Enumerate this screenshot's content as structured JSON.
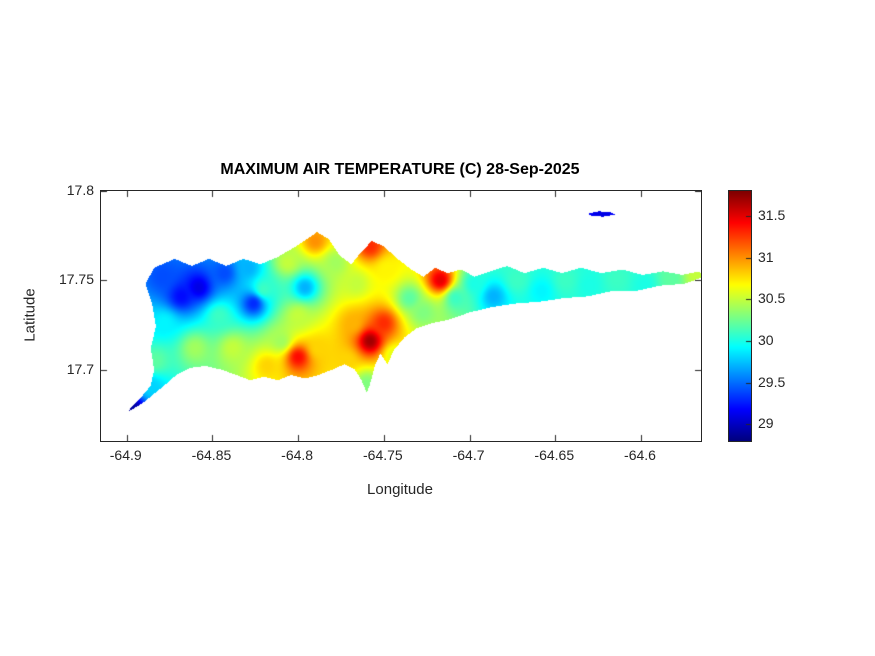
{
  "figure": {
    "title": "MAXIMUM AIR TEMPERATURE (C) 28-Sep-2025",
    "xlabel": "Longitude",
    "ylabel": "Latitude"
  },
  "chart_data": {
    "type": "heatmap",
    "title": "MAXIMUM AIR TEMPERATURE (C) 28-Sep-2025",
    "subtitle_date": "28-Sep-2025",
    "units": "C",
    "xlabel": "Longitude",
    "ylabel": "Latitude",
    "xlim": [
      -64.915,
      -64.565
    ],
    "ylim": [
      17.66,
      17.8
    ],
    "x_ticks": [
      -64.9,
      -64.85,
      -64.8,
      -64.75,
      -64.7,
      -64.65,
      -64.6
    ],
    "y_ticks": [
      17.8,
      17.75,
      17.7
    ],
    "grid": false,
    "colorbar": {
      "position": "right",
      "colormap": "jet",
      "min": 28.8,
      "max": 31.8,
      "ticks": [
        29,
        29.5,
        30,
        30.5,
        31,
        31.5
      ]
    },
    "islands": [
      {
        "name": "st-croix-main",
        "outline": [
          [
            -64.889,
            17.748
          ],
          [
            -64.884,
            17.757
          ],
          [
            -64.872,
            17.762
          ],
          [
            -64.862,
            17.758
          ],
          [
            -64.852,
            17.762
          ],
          [
            -64.842,
            17.758
          ],
          [
            -64.832,
            17.762
          ],
          [
            -64.822,
            17.759
          ],
          [
            -64.812,
            17.763
          ],
          [
            -64.803,
            17.768
          ],
          [
            -64.795,
            17.773
          ],
          [
            -64.789,
            17.777
          ],
          [
            -64.782,
            17.773
          ],
          [
            -64.776,
            17.764
          ],
          [
            -64.769,
            17.759
          ],
          [
            -64.763,
            17.766
          ],
          [
            -64.757,
            17.772
          ],
          [
            -64.75,
            17.769
          ],
          [
            -64.742,
            17.762
          ],
          [
            -64.734,
            17.756
          ],
          [
            -64.727,
            17.752
          ],
          [
            -64.72,
            17.757
          ],
          [
            -64.713,
            17.754
          ],
          [
            -64.705,
            17.756
          ],
          [
            -64.697,
            17.752
          ],
          [
            -64.688,
            17.755
          ],
          [
            -64.678,
            17.758
          ],
          [
            -64.668,
            17.754
          ],
          [
            -64.657,
            17.757
          ],
          [
            -64.646,
            17.754
          ],
          [
            -64.635,
            17.757
          ],
          [
            -64.623,
            17.754
          ],
          [
            -64.611,
            17.756
          ],
          [
            -64.599,
            17.753
          ],
          [
            -64.587,
            17.755
          ],
          [
            -64.576,
            17.753
          ],
          [
            -64.566,
            17.755
          ],
          [
            -64.563,
            17.752
          ],
          [
            -64.575,
            17.748
          ],
          [
            -64.589,
            17.747
          ],
          [
            -64.603,
            17.744
          ],
          [
            -64.617,
            17.744
          ],
          [
            -64.631,
            17.741
          ],
          [
            -64.645,
            17.74
          ],
          [
            -64.659,
            17.738
          ],
          [
            -64.673,
            17.737
          ],
          [
            -64.687,
            17.735
          ],
          [
            -64.7,
            17.732
          ],
          [
            -64.712,
            17.728
          ],
          [
            -64.722,
            17.726
          ],
          [
            -64.731,
            17.723
          ],
          [
            -64.738,
            17.718
          ],
          [
            -64.744,
            17.711
          ],
          [
            -64.748,
            17.703
          ],
          [
            -64.752,
            17.709
          ],
          [
            -64.755,
            17.703
          ],
          [
            -64.758,
            17.692
          ],
          [
            -64.76,
            17.687
          ],
          [
            -64.763,
            17.694
          ],
          [
            -64.767,
            17.7
          ],
          [
            -64.773,
            17.703
          ],
          [
            -64.78,
            17.7
          ],
          [
            -64.788,
            17.697
          ],
          [
            -64.796,
            17.695
          ],
          [
            -64.804,
            17.697
          ],
          [
            -64.812,
            17.694
          ],
          [
            -64.82,
            17.696
          ],
          [
            -64.828,
            17.694
          ],
          [
            -64.836,
            17.697
          ],
          [
            -64.845,
            17.7
          ],
          [
            -64.854,
            17.702
          ],
          [
            -64.863,
            17.701
          ],
          [
            -64.871,
            17.697
          ],
          [
            -64.877,
            17.692
          ],
          [
            -64.882,
            17.688
          ],
          [
            -64.891,
            17.681
          ],
          [
            -64.9,
            17.676
          ],
          [
            -64.892,
            17.684
          ],
          [
            -64.886,
            17.691
          ],
          [
            -64.884,
            17.7
          ],
          [
            -64.886,
            17.712
          ],
          [
            -64.883,
            17.724
          ],
          [
            -64.885,
            17.736
          ]
        ]
      },
      {
        "name": "buck-island",
        "outline": [
          [
            -64.631,
            17.7872
          ],
          [
            -64.625,
            17.7886
          ],
          [
            -64.618,
            17.7882
          ],
          [
            -64.615,
            17.7868
          ],
          [
            -64.622,
            17.7857
          ],
          [
            -64.628,
            17.7858
          ]
        ]
      }
    ],
    "sample_points_lon_lat_c": [
      [
        -64.897,
        17.678,
        28.9
      ],
      [
        -64.886,
        17.69,
        29.8
      ],
      [
        -64.883,
        17.705,
        30.2
      ],
      [
        -64.879,
        17.752,
        29.4
      ],
      [
        -64.868,
        17.741,
        29.2
      ],
      [
        -64.858,
        17.746,
        29.1
      ],
      [
        -64.878,
        17.726,
        29.9
      ],
      [
        -64.843,
        17.754,
        29.4
      ],
      [
        -64.829,
        17.757,
        29.7
      ],
      [
        -64.826,
        17.737,
        29.3
      ],
      [
        -64.846,
        17.73,
        30.1
      ],
      [
        -64.86,
        17.712,
        30.4
      ],
      [
        -64.838,
        17.712,
        30.5
      ],
      [
        -64.818,
        17.702,
        30.8
      ],
      [
        -64.8,
        17.707,
        31.4
      ],
      [
        -64.788,
        17.712,
        30.8
      ],
      [
        -64.81,
        17.716,
        30.4
      ],
      [
        -64.82,
        17.745,
        30.1
      ],
      [
        -64.8,
        17.73,
        30.5
      ],
      [
        -64.796,
        17.746,
        29.7
      ],
      [
        -64.806,
        17.76,
        30.5
      ],
      [
        -64.79,
        17.772,
        31.0
      ],
      [
        -64.778,
        17.76,
        30.4
      ],
      [
        -64.766,
        17.748,
        30.5
      ],
      [
        -64.758,
        17.769,
        31.3
      ],
      [
        -64.748,
        17.756,
        30.7
      ],
      [
        -64.758,
        17.716,
        31.7
      ],
      [
        -64.75,
        17.726,
        31.3
      ],
      [
        -64.768,
        17.726,
        30.9
      ],
      [
        -64.772,
        17.705,
        30.8
      ],
      [
        -64.76,
        17.692,
        30.3
      ],
      [
        -64.744,
        17.708,
        30.6
      ],
      [
        -64.735,
        17.74,
        30.2
      ],
      [
        -64.727,
        17.732,
        30.3
      ],
      [
        -64.717,
        17.75,
        31.5
      ],
      [
        -64.708,
        17.74,
        30.1
      ],
      [
        -64.697,
        17.748,
        30.0
      ],
      [
        -64.686,
        17.741,
        29.7
      ],
      [
        -64.672,
        17.75,
        30.1
      ],
      [
        -64.658,
        17.744,
        29.9
      ],
      [
        -64.644,
        17.75,
        30.1
      ],
      [
        -64.63,
        17.747,
        30.0
      ],
      [
        -64.614,
        17.751,
        30.1
      ],
      [
        -64.598,
        17.747,
        30.0
      ],
      [
        -64.582,
        17.751,
        30.2
      ],
      [
        -64.568,
        17.753,
        30.5
      ],
      [
        -64.623,
        17.787,
        29.1
      ]
    ]
  }
}
